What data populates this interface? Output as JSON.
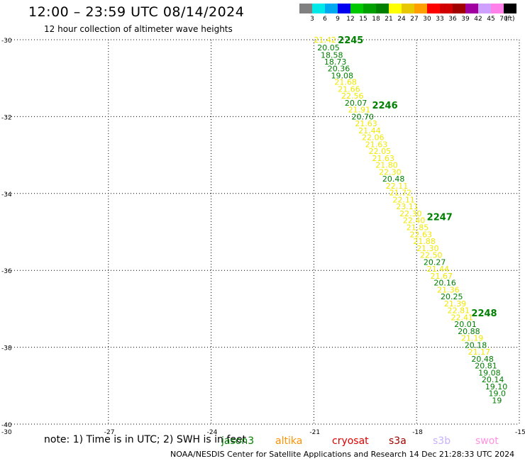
{
  "title": "12:00 – 23:59 UTC 08/14/2024",
  "subtitle": "12 hour collection of altimeter wave heights",
  "colorbar": {
    "colors": [
      "#808080",
      "#00e8e8",
      "#00a8f0",
      "#0000f0",
      "#00c800",
      "#00a000",
      "#008000",
      "#ffff00",
      "#e8c800",
      "#ffa000",
      "#ff0000",
      "#d00000",
      "#a00000",
      "#a000a0",
      "#d0a0ff",
      "#ff80e8",
      "#000000"
    ],
    "ticks": [
      "3",
      "6",
      "9",
      "12",
      "15",
      "18",
      "21",
      "24",
      "27",
      "30",
      "33",
      "36",
      "39",
      "42",
      "45",
      "70"
    ],
    "unit": "(ft)"
  },
  "axes": {
    "x_ticks": [
      "-27",
      "-24",
      "-21",
      "-18",
      "-15"
    ],
    "y_ticks": [
      "-30",
      "-32",
      "-34",
      "-36",
      "-38",
      "-40"
    ],
    "x_left_label": "-30"
  },
  "chart_data": {
    "type": "scatter",
    "title": "12:00 – 23:59 UTC 08/14/2024",
    "xlim": [
      -30,
      -15
    ],
    "ylim": [
      -40,
      -30
    ],
    "grid": true,
    "track_labels": [
      {
        "text": "2245",
        "lon": -20.3,
        "lat": -30.0
      },
      {
        "text": "2246",
        "lon": -19.3,
        "lat": -31.7
      },
      {
        "text": "2247",
        "lon": -17.7,
        "lat": -34.6
      },
      {
        "text": "2248",
        "lon": -16.4,
        "lat": -37.1
      }
    ],
    "points": [
      {
        "lon": -21.0,
        "lat": -30.0,
        "value": "21.42",
        "color": "#f0e800"
      },
      {
        "lon": -20.9,
        "lat": -30.2,
        "value": "20.05",
        "color": "#008000"
      },
      {
        "lon": -20.8,
        "lat": -30.4,
        "value": "18.58",
        "color": "#008000"
      },
      {
        "lon": -20.7,
        "lat": -30.57,
        "value": "18.73",
        "color": "#008000"
      },
      {
        "lon": -20.6,
        "lat": -30.75,
        "value": "20.36",
        "color": "#008000"
      },
      {
        "lon": -20.5,
        "lat": -30.93,
        "value": "19.08",
        "color": "#008000"
      },
      {
        "lon": -20.4,
        "lat": -31.1,
        "value": "21.68",
        "color": "#f0e800"
      },
      {
        "lon": -20.3,
        "lat": -31.28,
        "value": "21.66",
        "color": "#f0e800"
      },
      {
        "lon": -20.2,
        "lat": -31.46,
        "value": "22.56",
        "color": "#f0e800"
      },
      {
        "lon": -20.1,
        "lat": -31.64,
        "value": "20.07",
        "color": "#008000"
      },
      {
        "lon": -20.0,
        "lat": -31.82,
        "value": "21.91",
        "color": "#f0e800"
      },
      {
        "lon": -19.9,
        "lat": -32.0,
        "value": "20.70",
        "color": "#008000"
      },
      {
        "lon": -19.8,
        "lat": -32.18,
        "value": "21.63",
        "color": "#f0e800"
      },
      {
        "lon": -19.7,
        "lat": -32.36,
        "value": "21.44",
        "color": "#f0e800"
      },
      {
        "lon": -19.6,
        "lat": -32.54,
        "value": "22.06",
        "color": "#f0e800"
      },
      {
        "lon": -19.5,
        "lat": -32.72,
        "value": "21.63",
        "color": "#f0e800"
      },
      {
        "lon": -19.4,
        "lat": -32.9,
        "value": "22.05",
        "color": "#f0e800"
      },
      {
        "lon": -19.3,
        "lat": -33.08,
        "value": "21.63",
        "color": "#f0e800"
      },
      {
        "lon": -19.2,
        "lat": -33.26,
        "value": "21.80",
        "color": "#f0e800"
      },
      {
        "lon": -19.1,
        "lat": -33.44,
        "value": "22.30",
        "color": "#f0e800"
      },
      {
        "lon": -19.0,
        "lat": -33.62,
        "value": "20.48",
        "color": "#008000"
      },
      {
        "lon": -18.9,
        "lat": -33.8,
        "value": "22.11",
        "color": "#f0e800"
      },
      {
        "lon": -18.8,
        "lat": -33.98,
        "value": "21.72",
        "color": "#f0e800"
      },
      {
        "lon": -18.7,
        "lat": -34.16,
        "value": "22.11",
        "color": "#f0e800"
      },
      {
        "lon": -18.6,
        "lat": -34.34,
        "value": "23.11",
        "color": "#f0e800"
      },
      {
        "lon": -18.5,
        "lat": -34.52,
        "value": "22.30",
        "color": "#f0e800"
      },
      {
        "lon": -18.4,
        "lat": -34.7,
        "value": "22.40",
        "color": "#f0e800"
      },
      {
        "lon": -18.3,
        "lat": -34.88,
        "value": "21.85",
        "color": "#f0e800"
      },
      {
        "lon": -18.2,
        "lat": -35.06,
        "value": "22.63",
        "color": "#f0e800"
      },
      {
        "lon": -18.1,
        "lat": -35.24,
        "value": "21.88",
        "color": "#f0e800"
      },
      {
        "lon": -18.0,
        "lat": -35.42,
        "value": "21.30",
        "color": "#f0e800"
      },
      {
        "lon": -17.9,
        "lat": -35.6,
        "value": "22.50",
        "color": "#f0e800"
      },
      {
        "lon": -17.8,
        "lat": -35.78,
        "value": "20.27",
        "color": "#008000"
      },
      {
        "lon": -17.7,
        "lat": -35.96,
        "value": "21.44",
        "color": "#f0e800"
      },
      {
        "lon": -17.6,
        "lat": -36.14,
        "value": "21.67",
        "color": "#f0e800"
      },
      {
        "lon": -17.5,
        "lat": -36.32,
        "value": "20.16",
        "color": "#008000"
      },
      {
        "lon": -17.4,
        "lat": -36.5,
        "value": "21.36",
        "color": "#f0e800"
      },
      {
        "lon": -17.3,
        "lat": -36.68,
        "value": "20.25",
        "color": "#008000"
      },
      {
        "lon": -17.2,
        "lat": -36.86,
        "value": "21.39",
        "color": "#f0e800"
      },
      {
        "lon": -17.1,
        "lat": -37.04,
        "value": "22.81",
        "color": "#f0e800"
      },
      {
        "lon": -17.0,
        "lat": -37.22,
        "value": "22.41",
        "color": "#f0e800"
      },
      {
        "lon": -16.9,
        "lat": -37.4,
        "value": "20.01",
        "color": "#008000"
      },
      {
        "lon": -16.8,
        "lat": -37.58,
        "value": "20.88",
        "color": "#008000"
      },
      {
        "lon": -16.7,
        "lat": -37.76,
        "value": "21.19",
        "color": "#f0e800"
      },
      {
        "lon": -16.6,
        "lat": -37.94,
        "value": "20.18",
        "color": "#008000"
      },
      {
        "lon": -16.5,
        "lat": -38.12,
        "value": "21.17",
        "color": "#f0e800"
      },
      {
        "lon": -16.4,
        "lat": -38.3,
        "value": "20.48",
        "color": "#008000"
      },
      {
        "lon": -16.3,
        "lat": -38.48,
        "value": "20.81",
        "color": "#008000"
      },
      {
        "lon": -16.2,
        "lat": -38.66,
        "value": "19.08",
        "color": "#008000"
      },
      {
        "lon": -16.1,
        "lat": -38.84,
        "value": "20.14",
        "color": "#008000"
      },
      {
        "lon": -16.0,
        "lat": -39.02,
        "value": "19.10",
        "color": "#008000"
      },
      {
        "lon": -15.9,
        "lat": -39.2,
        "value": "19.0",
        "color": "#008000"
      },
      {
        "lon": -15.8,
        "lat": -39.38,
        "value": "19",
        "color": "#008000"
      }
    ]
  },
  "note": "note: 1) Time is in UTC; 2) SWH is in feet",
  "sources": [
    {
      "label": "jason3",
      "color": "#008000"
    },
    {
      "label": "altika",
      "color": "#ff9000"
    },
    {
      "label": "cryosat",
      "color": "#e00000"
    },
    {
      "label": "s3a",
      "color": "#a00000"
    },
    {
      "label": "s3b",
      "color": "#c8b0ff"
    },
    {
      "label": "swot",
      "color": "#ff90e0"
    }
  ],
  "footer": "NOAA/NESDIS Center for Satellite Applications and Research    14 Dec 21:28:33 UTC 2024"
}
